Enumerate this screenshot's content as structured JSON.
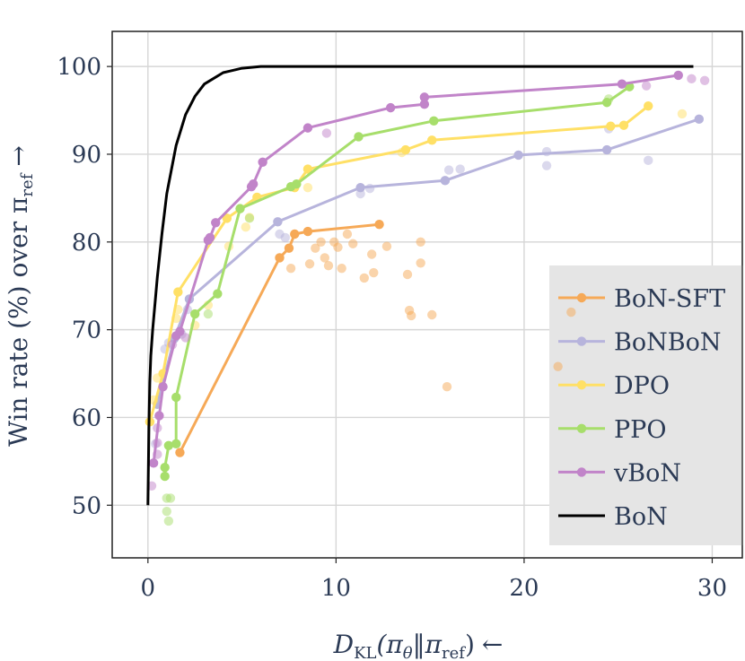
{
  "chart_data": {
    "type": "line",
    "title": "",
    "xlabel_main": "D",
    "xlabel_sub": "KL",
    "xlabel_arg": "(π",
    "xlabel_theta": "θ",
    "xlabel_sep": "‖π",
    "xlabel_ref": "ref",
    "xlabel_close": ")",
    "xlabel_arrow": "←",
    "ylabel_main": "Win rate (%) over π",
    "ylabel_ref": "ref",
    "ylabel_arrow": "→",
    "xlim": [
      -1.9,
      31.6
    ],
    "ylim": [
      44,
      104
    ],
    "xticks": [
      0,
      10,
      20,
      30
    ],
    "yticks": [
      50,
      60,
      70,
      80,
      90,
      100
    ],
    "grid": true,
    "legend_position": "right",
    "series": [
      {
        "name": "BoN-SFT",
        "color": "#f6a957",
        "line": [
          [
            1.7,
            56
          ],
          [
            7,
            78.2
          ],
          [
            7.5,
            79.3
          ],
          [
            7.8,
            80.9
          ],
          [
            8.5,
            81.2
          ],
          [
            12.3,
            82
          ]
        ],
        "scatter": [
          [
            7.6,
            77
          ],
          [
            8.6,
            77.5
          ],
          [
            8.9,
            79.3
          ],
          [
            9.2,
            80
          ],
          [
            9.4,
            78.2
          ],
          [
            9.6,
            77.3
          ],
          [
            9.9,
            80
          ],
          [
            10.1,
            79.4
          ],
          [
            10.3,
            77
          ],
          [
            10.6,
            80.9
          ],
          [
            10.9,
            79.8
          ],
          [
            11.5,
            75.9
          ],
          [
            11.9,
            78.6
          ],
          [
            12,
            76.5
          ],
          [
            12.7,
            79.5
          ],
          [
            13.8,
            76.3
          ],
          [
            13.9,
            72.2
          ],
          [
            14,
            71.6
          ],
          [
            14.5,
            80
          ],
          [
            14.5,
            77.6
          ],
          [
            15.1,
            71.7
          ],
          [
            15.9,
            63.5
          ],
          [
            21.8,
            65.8
          ],
          [
            22.5,
            72
          ]
        ]
      },
      {
        "name": "BoNBoN",
        "color": "#b7b4dc",
        "line": [
          [
            0.5,
            61.5
          ],
          [
            1.4,
            69
          ],
          [
            2.2,
            73.5
          ],
          [
            6.9,
            82.3
          ],
          [
            11.3,
            86.2
          ],
          [
            15.8,
            87
          ],
          [
            19.7,
            89.9
          ],
          [
            24.4,
            90.5
          ],
          [
            29.3,
            94
          ]
        ],
        "scatter": [
          [
            0.4,
            57
          ],
          [
            0.9,
            67.8
          ],
          [
            1.1,
            68.5
          ],
          [
            1.8,
            69.5
          ],
          [
            2.1,
            72.3
          ],
          [
            7,
            80.9
          ],
          [
            7.3,
            80.5
          ],
          [
            11.3,
            85.5
          ],
          [
            11.8,
            86.1
          ],
          [
            16,
            88.2
          ],
          [
            16.6,
            88.3
          ],
          [
            21.2,
            88.7
          ],
          [
            21.2,
            90.3
          ],
          [
            24.5,
            92.9
          ],
          [
            26.6,
            89.3
          ]
        ]
      },
      {
        "name": "DPO",
        "color": "#ffe066",
        "line": [
          [
            0.1,
            59.5
          ],
          [
            0.8,
            65
          ],
          [
            1.6,
            74.3
          ],
          [
            4.2,
            82.7
          ],
          [
            5.8,
            85.1
          ],
          [
            7.8,
            86.2
          ],
          [
            8.5,
            88.3
          ],
          [
            13.7,
            90.5
          ],
          [
            15.1,
            91.6
          ],
          [
            24.6,
            93.2
          ],
          [
            25.3,
            93.3
          ],
          [
            26.6,
            95.5
          ]
        ],
        "scatter": [
          [
            0.3,
            62
          ],
          [
            0.5,
            64.5
          ],
          [
            1.5,
            71.3
          ],
          [
            1.6,
            72.3
          ],
          [
            2.5,
            70.5
          ],
          [
            3.2,
            72.8
          ],
          [
            4.3,
            79.5
          ],
          [
            5.2,
            81.7
          ],
          [
            5.4,
            82.8
          ],
          [
            8.5,
            86.2
          ],
          [
            13.5,
            90.2
          ],
          [
            28.4,
            94.6
          ]
        ]
      },
      {
        "name": "PPO",
        "color": "#a7de6b",
        "line": [
          [
            0.9,
            53.3
          ],
          [
            0.9,
            54.3
          ],
          [
            1.1,
            56.8
          ],
          [
            1.5,
            57
          ],
          [
            1.5,
            62.3
          ],
          [
            2.5,
            71.8
          ],
          [
            3.7,
            74.1
          ],
          [
            4.9,
            83.8
          ],
          [
            7.6,
            86.3
          ],
          [
            7.9,
            86.6
          ],
          [
            11.2,
            92
          ],
          [
            15.2,
            93.8
          ],
          [
            24.4,
            95.9
          ],
          [
            25.6,
            97.7
          ]
        ],
        "scatter": [
          [
            1,
            49.3
          ],
          [
            1,
            50.8
          ],
          [
            1.1,
            48.2
          ],
          [
            1.2,
            50.8
          ],
          [
            3.2,
            71.8
          ],
          [
            5.4,
            82.7
          ],
          [
            24.5,
            96.3
          ]
        ]
      },
      {
        "name": "vBoN",
        "color": "#c184c9",
        "line": [
          [
            0.3,
            54.8
          ],
          [
            0.6,
            60.2
          ],
          [
            0.8,
            63.5
          ],
          [
            1.5,
            69.3
          ],
          [
            1.7,
            69.8
          ],
          [
            3.2,
            80.2
          ],
          [
            3.3,
            80.5
          ],
          [
            3.6,
            82.2
          ],
          [
            5.5,
            86.3
          ],
          [
            5.6,
            86.6
          ],
          [
            6.1,
            89.1
          ],
          [
            8.5,
            93
          ],
          [
            12.9,
            95.3
          ],
          [
            14.7,
            95.7
          ],
          [
            14.7,
            96.5
          ],
          [
            25.2,
            98
          ],
          [
            28.2,
            99
          ]
        ],
        "scatter": [
          [
            0.2,
            52.2
          ],
          [
            0.5,
            55.8
          ],
          [
            0.5,
            57.1
          ],
          [
            0.5,
            58.8
          ],
          [
            1.3,
            68.3
          ],
          [
            2,
            69.1
          ],
          [
            9.5,
            92.4
          ],
          [
            28.9,
            98.6
          ],
          [
            29.6,
            98.4
          ],
          [
            26.5,
            97.8
          ]
        ]
      },
      {
        "name": "BoN",
        "color": "#000000",
        "line": [
          [
            0,
            50
          ],
          [
            0.05,
            59
          ],
          [
            0.1,
            64
          ],
          [
            0.15,
            67
          ],
          [
            0.25,
            70
          ],
          [
            0.5,
            76
          ],
          [
            0.75,
            81
          ],
          [
            1,
            85.5
          ],
          [
            1.5,
            91
          ],
          [
            2,
            94.5
          ],
          [
            2.5,
            96.6
          ],
          [
            3,
            98
          ],
          [
            4,
            99.3
          ],
          [
            5,
            99.8
          ],
          [
            6,
            100
          ],
          [
            29,
            100
          ]
        ],
        "scatter": []
      }
    ]
  }
}
